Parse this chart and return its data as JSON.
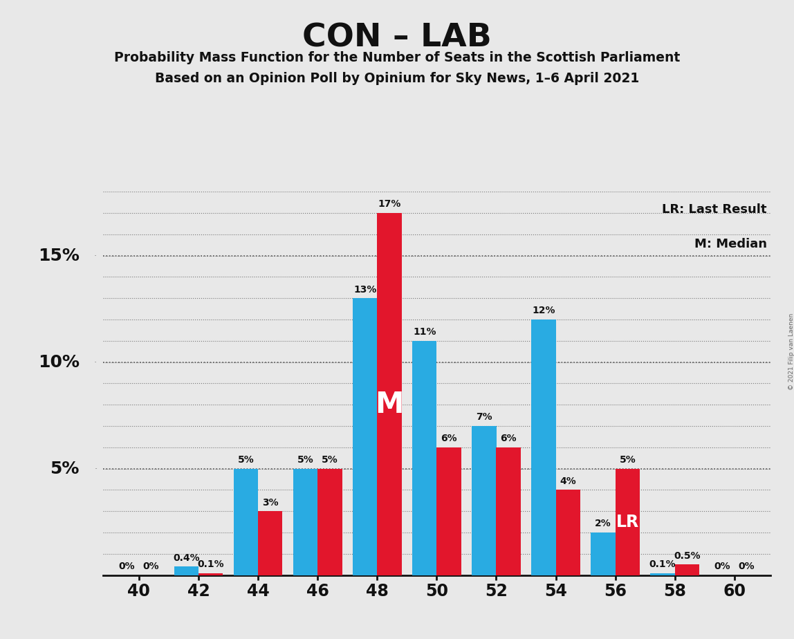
{
  "title": "CON – LAB",
  "subtitle1": "Probability Mass Function for the Number of Seats in the Scottish Parliament",
  "subtitle2": "Based on an Opinion Poll by Opinium for Sky News, 1–6 April 2021",
  "copyright": "© 2021 Filip van Laenen",
  "legend_lr": "LR: Last Result",
  "legend_m": "M: Median",
  "seats": [
    40,
    42,
    44,
    46,
    48,
    50,
    52,
    54,
    56,
    58,
    60
  ],
  "blue_values": [
    0.0,
    0.4,
    5.0,
    5.0,
    13.0,
    11.0,
    7.0,
    12.0,
    2.0,
    0.1,
    0.0
  ],
  "red_values": [
    0.0,
    0.1,
    3.0,
    5.0,
    17.0,
    6.0,
    6.0,
    4.0,
    5.0,
    0.5,
    0.0
  ],
  "blue_labels": [
    "0%",
    "0.4%",
    "5%",
    "5%",
    "13%",
    "11%",
    "7%",
    "12%",
    "2%",
    "0.1%",
    "0%"
  ],
  "red_labels": [
    "0%",
    "0.1%",
    "3%",
    "5%",
    "17%",
    "6%",
    "6%",
    "4%",
    "5%",
    "0.5%",
    "0%"
  ],
  "blue_color": "#29ABE2",
  "red_color": "#E2162C",
  "background_color": "#E8E8E8",
  "ylim": [
    0,
    18
  ],
  "yticks": [
    0,
    5,
    10,
    15
  ],
  "ytick_labels": [
    "",
    "5%",
    "10%",
    "15%"
  ],
  "bar_width": 0.85
}
